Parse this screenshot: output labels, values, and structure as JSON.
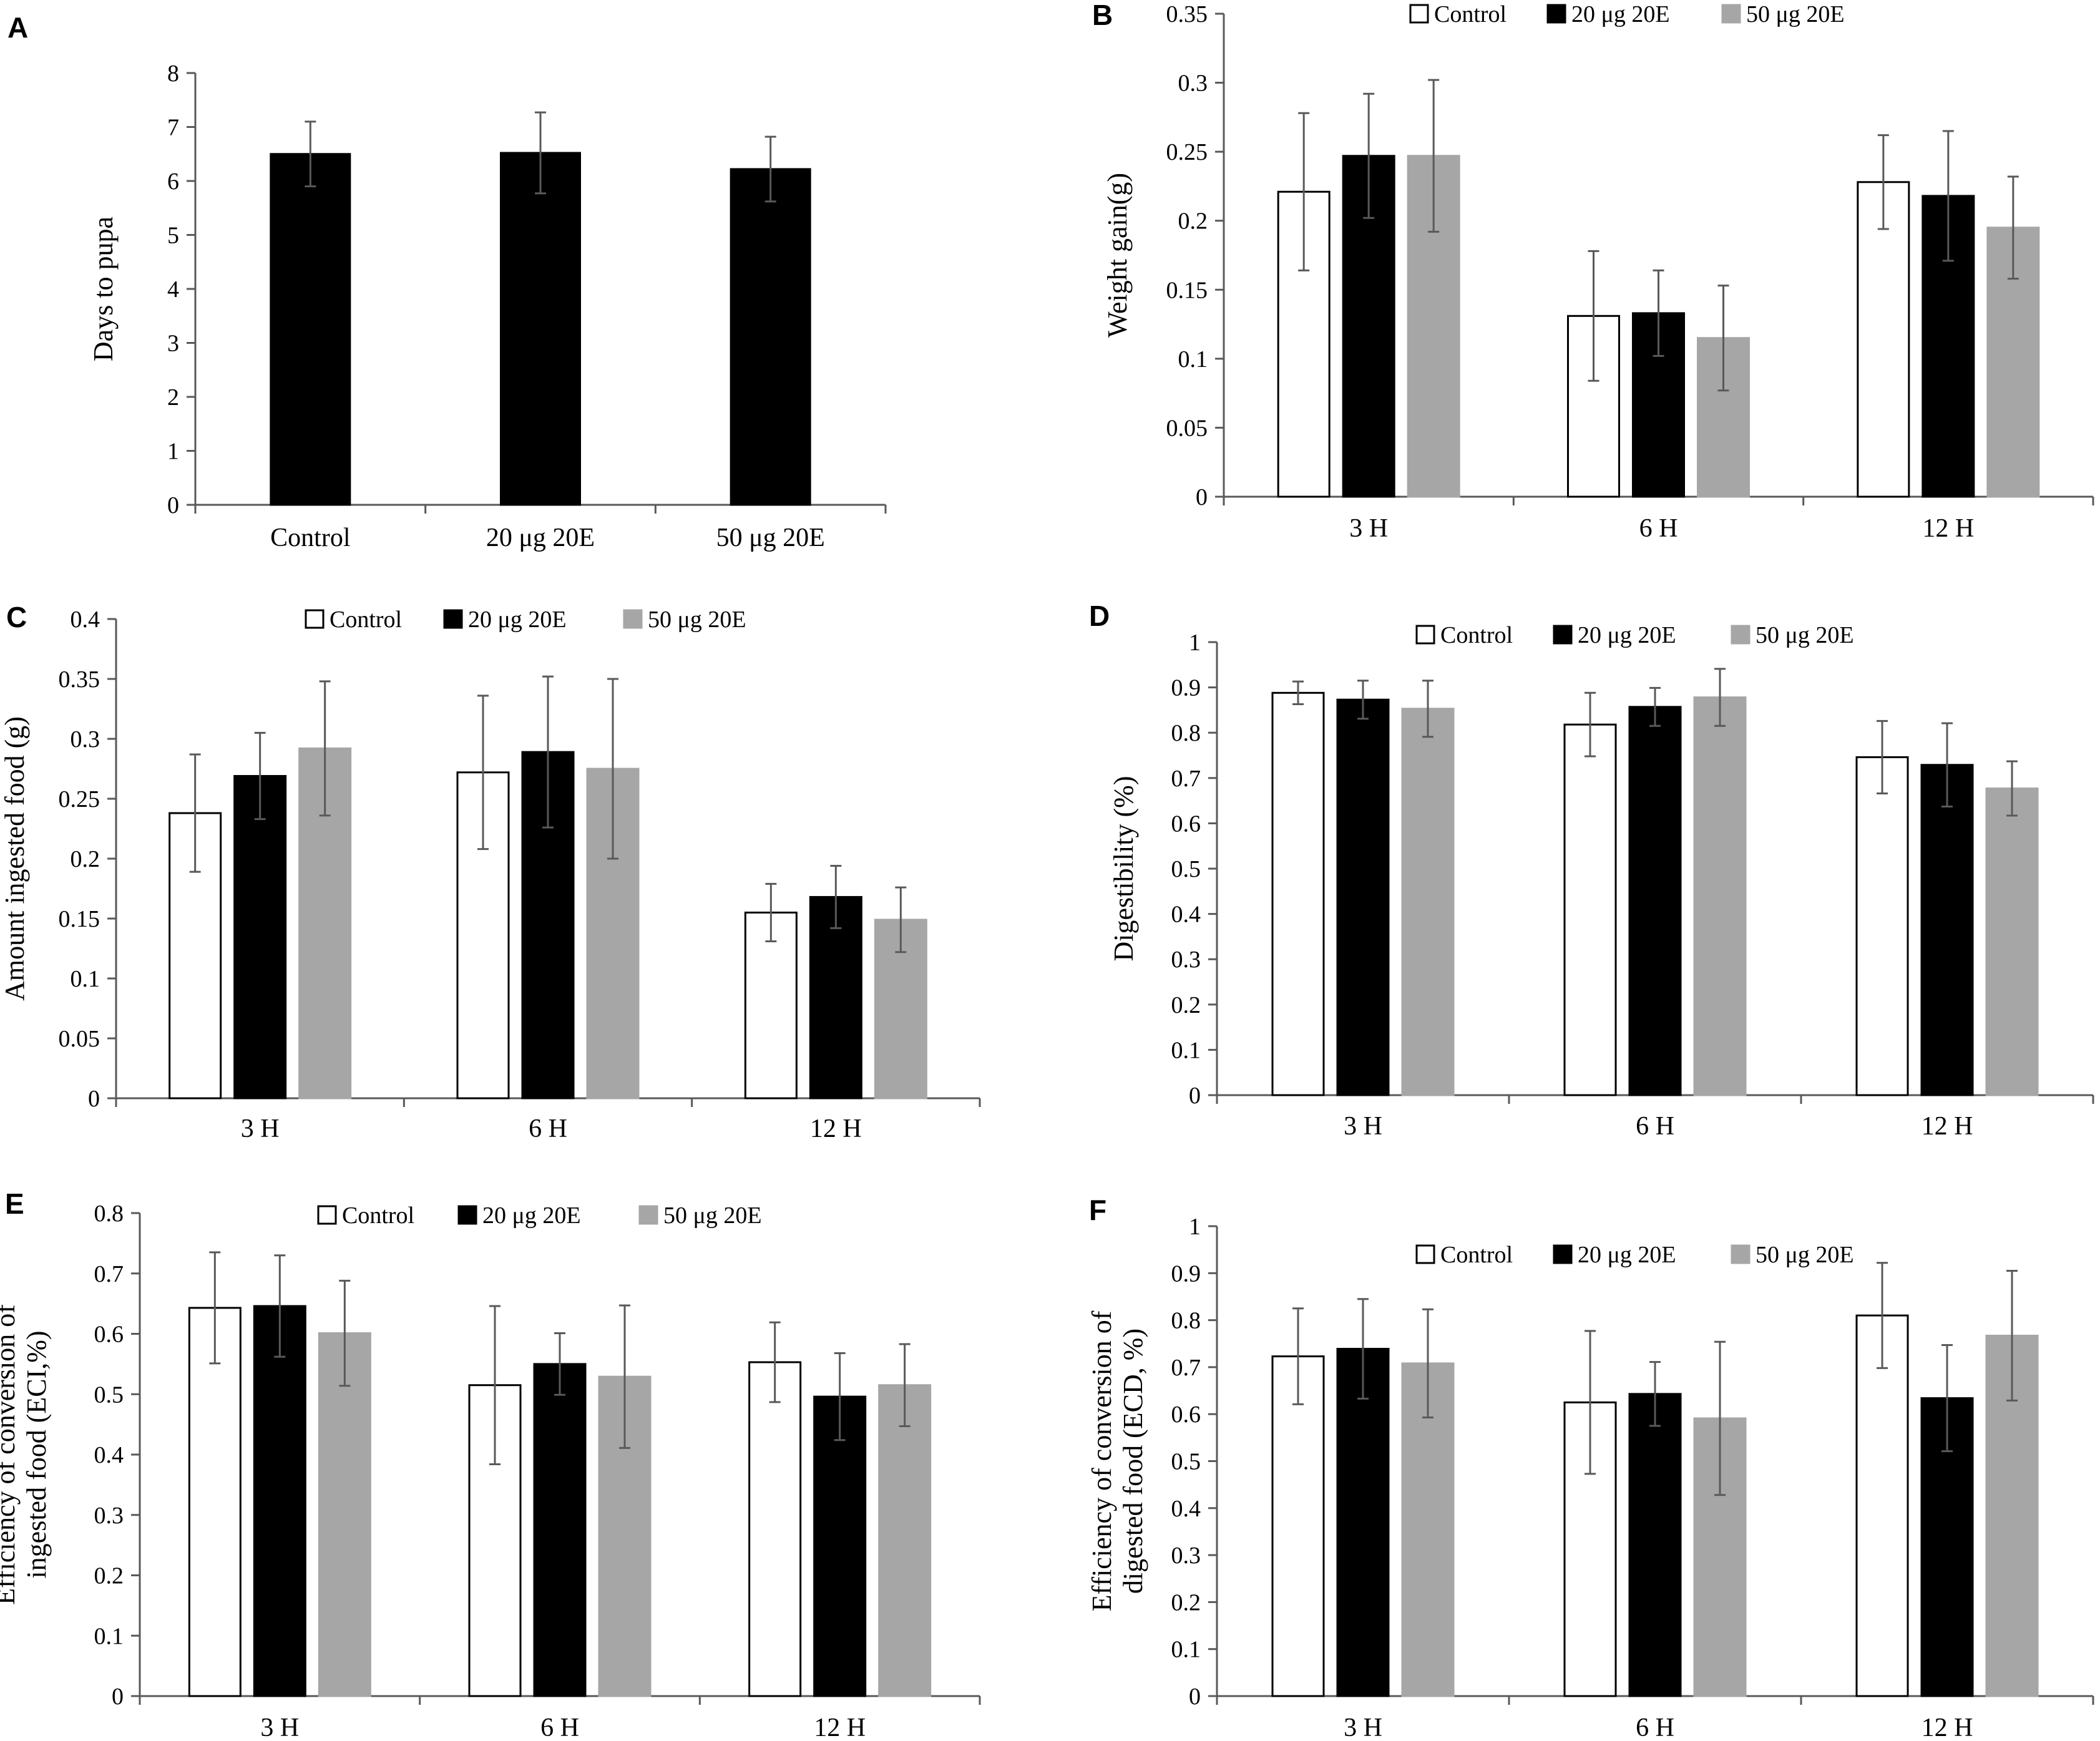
{
  "colors": {
    "control": "#ffffff",
    "dose20": "#000000",
    "dose50": "#a6a6a6",
    "axis": "#595959",
    "error": "#595959"
  },
  "legend_labels": [
    "Control",
    "20 μg 20E",
    "50 μg 20E"
  ],
  "chart_data": [
    {
      "panel": "A",
      "type": "bar",
      "categories": [
        "Control",
        "20 μg 20E",
        "50 μg 20E"
      ],
      "series": [
        {
          "name": "Days",
          "values": [
            6.5,
            6.52,
            6.22
          ],
          "errors": [
            0.6,
            0.75,
            0.6
          ]
        }
      ],
      "ylabel": [
        "Days to pupa"
      ],
      "ylim": [
        0,
        8
      ],
      "yticks": [
        "0",
        "1",
        "2",
        "3",
        "4",
        "5",
        "6",
        "7",
        "8"
      ],
      "legend": false
    },
    {
      "panel": "B",
      "type": "bar",
      "categories": [
        "3 H",
        "6 H",
        "12 H"
      ],
      "series": [
        {
          "name": "Control",
          "values": [
            0.221,
            0.131,
            0.228
          ],
          "errors": [
            0.057,
            0.047,
            0.034
          ]
        },
        {
          "name": "20 μg 20E",
          "values": [
            0.247,
            0.133,
            0.218
          ],
          "errors": [
            0.045,
            0.031,
            0.047
          ]
        },
        {
          "name": "50 μg 20E",
          "values": [
            0.247,
            0.115,
            0.195
          ],
          "errors": [
            0.055,
            0.038,
            0.037
          ]
        }
      ],
      "ylabel": [
        "Weight gain(g)"
      ],
      "ylim": [
        0,
        0.35
      ],
      "yticks": [
        "0",
        "0.05",
        "0.1",
        "0.15",
        "0.2",
        "0.25",
        "0.3",
        "0.35"
      ],
      "legend": true
    },
    {
      "panel": "C",
      "type": "bar",
      "categories": [
        "3 H",
        "6 H",
        "12 H"
      ],
      "series": [
        {
          "name": "Control",
          "values": [
            0.238,
            0.272,
            0.155
          ],
          "errors": [
            0.049,
            0.064,
            0.024
          ]
        },
        {
          "name": "20 μg 20E",
          "values": [
            0.269,
            0.289,
            0.168
          ],
          "errors": [
            0.036,
            0.063,
            0.026
          ]
        },
        {
          "name": "50 μg 20E",
          "values": [
            0.292,
            0.275,
            0.149
          ],
          "errors": [
            0.056,
            0.075,
            0.027
          ]
        }
      ],
      "ylabel": [
        "Amount ingested food (g)"
      ],
      "ylim": [
        0,
        0.4
      ],
      "yticks": [
        "0",
        "0.05",
        "0.1",
        "0.15",
        "0.2",
        "0.25",
        "0.3",
        "0.35",
        "0.4"
      ],
      "legend": true
    },
    {
      "panel": "D",
      "type": "bar",
      "categories": [
        "3 H",
        "6 H",
        "12 H"
      ],
      "series": [
        {
          "name": "Control",
          "values": [
            0.888,
            0.818,
            0.746
          ],
          "errors": [
            0.025,
            0.07,
            0.08
          ]
        },
        {
          "name": "20 μg 20E",
          "values": [
            0.873,
            0.857,
            0.729
          ],
          "errors": [
            0.042,
            0.042,
            0.092
          ]
        },
        {
          "name": "50 μg 20E",
          "values": [
            0.853,
            0.878,
            0.677
          ],
          "errors": [
            0.062,
            0.063,
            0.06
          ]
        }
      ],
      "ylabel": [
        "Digestibility (%)"
      ],
      "ylim": [
        0,
        1
      ],
      "yticks": [
        "0",
        "0.1",
        "0.2",
        "0.3",
        "0.4",
        "0.5",
        "0.6",
        "0.7",
        "0.8",
        "0.9",
        "1"
      ],
      "legend": true
    },
    {
      "panel": "E",
      "type": "bar",
      "categories": [
        "3 H",
        "6 H",
        "12 H"
      ],
      "series": [
        {
          "name": "Control",
          "values": [
            0.643,
            0.515,
            0.553
          ],
          "errors": [
            0.092,
            0.131,
            0.066
          ]
        },
        {
          "name": "20 μg 20E",
          "values": [
            0.646,
            0.55,
            0.496
          ],
          "errors": [
            0.084,
            0.051,
            0.072
          ]
        },
        {
          "name": "50 μg 20E",
          "values": [
            0.601,
            0.529,
            0.515
          ],
          "errors": [
            0.087,
            0.118,
            0.068
          ]
        }
      ],
      "ylabel": [
        "Efficiency of conversion of",
        "ingested food (ECI,%)"
      ],
      "ylim": [
        0,
        0.8
      ],
      "yticks": [
        "0",
        "0.1",
        "0.2",
        "0.3",
        "0.4",
        "0.5",
        "0.6",
        "0.7",
        "0.8"
      ],
      "legend": true
    },
    {
      "panel": "F",
      "type": "bar",
      "categories": [
        "3 H",
        "6 H",
        "12 H"
      ],
      "series": [
        {
          "name": "Control",
          "values": [
            0.723,
            0.625,
            0.81
          ],
          "errors": [
            0.102,
            0.152,
            0.112
          ]
        },
        {
          "name": "20 μg 20E",
          "values": [
            0.739,
            0.643,
            0.634
          ],
          "errors": [
            0.106,
            0.068,
            0.113
          ]
        },
        {
          "name": "50 μg 20E",
          "values": [
            0.708,
            0.591,
            0.767
          ],
          "errors": [
            0.115,
            0.163,
            0.138
          ]
        }
      ],
      "ylabel": [
        "Efficiency of conversion of",
        "digested food (ECD, %)"
      ],
      "ylim": [
        0,
        1
      ],
      "yticks": [
        "0",
        "0.1",
        "0.2",
        "0.3",
        "0.4",
        "0.5",
        "0.6",
        "0.7",
        "0.8",
        "0.9",
        "1"
      ],
      "legend": true
    }
  ]
}
